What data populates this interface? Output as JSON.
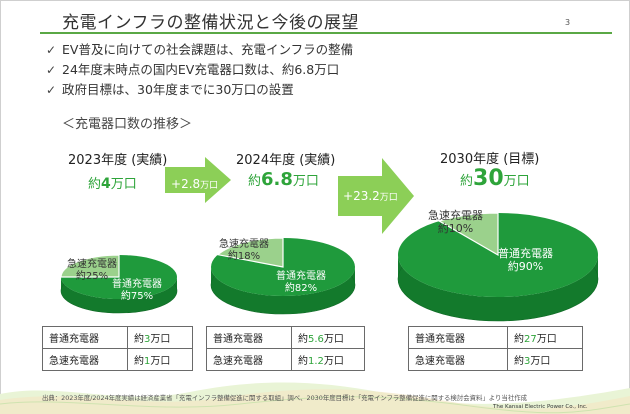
{
  "slide": {
    "title": "充電インフラの整備状況と今後の展望",
    "page_number": "3",
    "bullets": [
      "EV普及に向けての社会課題は、充電インフラの整備",
      "24年度末時点の国内EV充電器口数は、約6.8万口",
      "政府目標は、30年度までに30万口の設置"
    ],
    "check_icon": "check-mark-icon",
    "section_heading": "＜充電器口数の推移＞",
    "years": [
      {
        "label": "2023年度 (実績)",
        "prefix": "約",
        "amount": "4",
        "unit": "万口",
        "normal_label": "普通充電器",
        "normal_pct": "約75%",
        "fast_label": "急速充電器",
        "fast_pct": "約25%",
        "fast_share": 0.25,
        "table": [
          {
            "type": "普通充電器",
            "prefix": "約",
            "num": "3",
            "unit": "万口"
          },
          {
            "type": "急速充電器",
            "prefix": "約",
            "num": "1",
            "unit": "万口"
          }
        ]
      },
      {
        "label": "2024年度 (実績)",
        "prefix": "約",
        "amount": "6.8",
        "unit": "万口",
        "normal_label": "普通充電器",
        "normal_pct": "約82%",
        "fast_label": "急速充電器",
        "fast_pct": "約18%",
        "fast_share": 0.18,
        "table": [
          {
            "type": "普通充電器",
            "prefix": "約",
            "num": "5.6",
            "unit": "万口"
          },
          {
            "type": "急速充電器",
            "prefix": "約",
            "num": "1.2",
            "unit": "万口"
          }
        ]
      },
      {
        "label": "2030年度 (目標)",
        "prefix": "約",
        "amount": "30",
        "unit": "万口",
        "normal_label": "普通充電器",
        "normal_pct": "約90%",
        "fast_label": "急速充電器",
        "fast_pct": "約10%",
        "fast_share": 0.1,
        "table": [
          {
            "type": "普通充電器",
            "prefix": "約",
            "num": "27",
            "unit": "万口"
          },
          {
            "type": "急速充電器",
            "prefix": "約",
            "num": "3",
            "unit": "万口"
          }
        ]
      }
    ],
    "arrows": [
      {
        "prefix": "+",
        "num": "2.8",
        "unit": "万口"
      },
      {
        "prefix": "+",
        "num": "23.2",
        "unit": "万口"
      }
    ],
    "source": "出典：2023年度/2024年度実績は経済産業省「充電インフラ整備促進に関する取組」調べ、2030年度目標は「充電インフラ整備促進に関する検討会資料」より当社作成",
    "company": "The Kansai Electric Power Co., Inc.",
    "colors": {
      "accent_green": "#2ea43a",
      "pie_dark": "#1f9a3c",
      "pie_light": "#9bd18c",
      "arrow_green": "#8ccf57"
    }
  }
}
